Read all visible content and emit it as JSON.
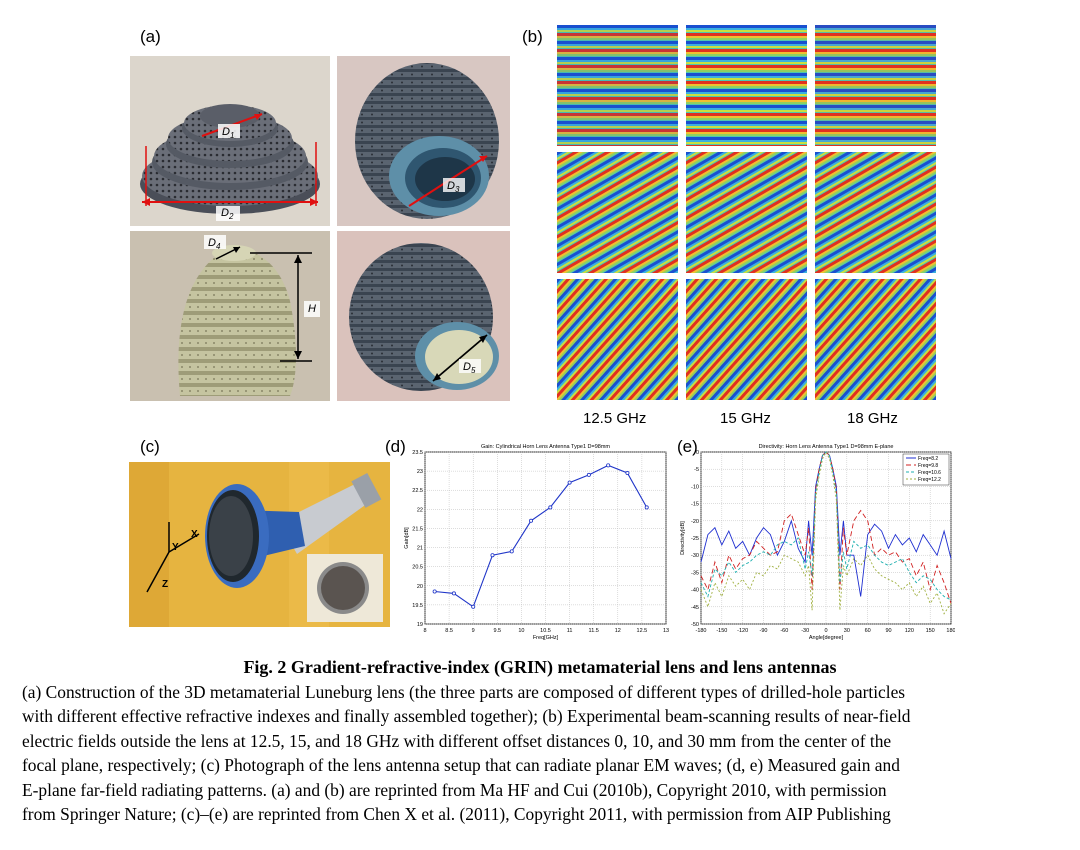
{
  "panels": {
    "a": "(a)",
    "b": "(b)",
    "c": "(c)",
    "d": "(d)",
    "e": "(e)"
  },
  "dims": {
    "D1": "D",
    "D1_sub": "1",
    "D2": "D",
    "D2_sub": "2",
    "D3": "D",
    "D3_sub": "3",
    "D4": "D",
    "D4_sub": "4",
    "D5": "D",
    "D5_sub": "5",
    "H": "H"
  },
  "axes_photo": {
    "x": "X",
    "y": "Y",
    "z": "Z"
  },
  "field_freqs": [
    "12.5 GHz",
    "15 GHz",
    "18 GHz"
  ],
  "chart_data": [
    {
      "type": "line",
      "panel": "(d)",
      "title": "Gain: Cylindrical Horn Lens Antenna Type1 D=98mm",
      "xlabel": "Freq[GHz]",
      "ylabel": "Gain[dB]",
      "xlim": [
        8,
        13
      ],
      "ylim": [
        19,
        23.5
      ],
      "xticks": [
        "8",
        "8.5",
        "9",
        "9.5",
        "10",
        "10.5",
        "11",
        "11.5",
        "12",
        "12.5",
        "13"
      ],
      "yticks": [
        "19",
        "19.5",
        "20",
        "20.5",
        "21",
        "21.5",
        "22",
        "22.5",
        "23",
        "23.5"
      ],
      "grid": true,
      "series": [
        {
          "name": "Gain",
          "color": "#1f35c8",
          "x": [
            8.2,
            8.6,
            9.0,
            9.4,
            9.8,
            10.2,
            10.6,
            11.0,
            11.4,
            11.8,
            12.2,
            12.6
          ],
          "y": [
            19.85,
            19.8,
            19.45,
            20.8,
            20.9,
            21.7,
            22.05,
            22.7,
            22.9,
            23.15,
            22.95,
            22.05
          ]
        }
      ]
    },
    {
      "type": "line",
      "panel": "(e)",
      "title": "Directivity: Horn Lens Antenna Type1 D=98mm E-plane",
      "xlabel": "Angle[degree]",
      "ylabel": "Directivity[dB]",
      "xlim": [
        -180,
        180
      ],
      "ylim": [
        -50,
        0
      ],
      "xticks": [
        "-180",
        "-150",
        "-120",
        "-90",
        "-60",
        "-30",
        "0",
        "30",
        "60",
        "90",
        "120",
        "150",
        "180"
      ],
      "yticks": [
        "0",
        "-5",
        "-10",
        "-15",
        "-20",
        "-25",
        "-30",
        "-35",
        "-40",
        "-45",
        "-50"
      ],
      "grid": true,
      "legend_position": "top-right",
      "series": [
        {
          "name": "Freq=8.2",
          "color": "#1f2fd0",
          "dash": "",
          "x": [
            -180,
            -170,
            -160,
            -150,
            -140,
            -130,
            -120,
            -110,
            -100,
            -90,
            -80,
            -70,
            -60,
            -50,
            -40,
            -30,
            -25,
            -20,
            -15,
            -10,
            -5,
            0,
            5,
            10,
            15,
            20,
            25,
            30,
            40,
            50,
            60,
            70,
            80,
            90,
            100,
            110,
            120,
            130,
            140,
            150,
            160,
            170,
            180
          ],
          "y": [
            -32,
            -24,
            -22,
            -27,
            -23,
            -28,
            -26,
            -30,
            -25,
            -22,
            -24,
            -30,
            -26,
            -20,
            -28,
            -32,
            -20,
            -30,
            -10,
            -5,
            -1,
            0,
            -1,
            -5,
            -10,
            -30,
            -20,
            -30,
            -30,
            -42,
            -24,
            -21,
            -23,
            -28,
            -24,
            -27,
            -25,
            -29,
            -24,
            -27,
            -30,
            -23,
            -31
          ]
        },
        {
          "name": "Freq=9.8",
          "color": "#d02020",
          "dash": "5,3",
          "x": [
            -180,
            -170,
            -160,
            -150,
            -140,
            -130,
            -120,
            -110,
            -100,
            -90,
            -80,
            -70,
            -60,
            -50,
            -40,
            -30,
            -25,
            -20,
            -15,
            -10,
            -5,
            0,
            5,
            10,
            15,
            20,
            25,
            30,
            40,
            50,
            60,
            70,
            80,
            90,
            100,
            110,
            120,
            130,
            140,
            150,
            160,
            170,
            180
          ],
          "y": [
            -36,
            -40,
            -32,
            -38,
            -30,
            -34,
            -31,
            -30,
            -26,
            -28,
            -30,
            -29,
            -20,
            -18,
            -24,
            -30,
            -22,
            -40,
            -11,
            -5,
            -1,
            0,
            -1,
            -5,
            -11,
            -40,
            -22,
            -30,
            -20,
            -17,
            -20,
            -30,
            -28,
            -30,
            -29,
            -32,
            -31,
            -36,
            -32,
            -40,
            -33,
            -38,
            -44
          ]
        },
        {
          "name": "Freq=10.6",
          "color": "#20b0b0",
          "dash": "3,2",
          "x": [
            -180,
            -170,
            -160,
            -150,
            -140,
            -130,
            -120,
            -110,
            -100,
            -90,
            -80,
            -70,
            -60,
            -50,
            -40,
            -30,
            -25,
            -20,
            -15,
            -10,
            -5,
            0,
            5,
            10,
            15,
            20,
            25,
            30,
            40,
            50,
            60,
            70,
            80,
            90,
            100,
            110,
            120,
            130,
            140,
            150,
            160,
            170,
            180
          ],
          "y": [
            -38,
            -42,
            -34,
            -36,
            -32,
            -35,
            -33,
            -32,
            -30,
            -29,
            -30,
            -27,
            -26,
            -27,
            -25,
            -34,
            -29,
            -36,
            -12,
            -6,
            -1,
            0,
            -1,
            -6,
            -12,
            -38,
            -29,
            -34,
            -26,
            -28,
            -27,
            -30,
            -32,
            -33,
            -32,
            -31,
            -35,
            -38,
            -36,
            -37,
            -40,
            -42,
            -43
          ]
        },
        {
          "name": "Freq=12.2",
          "color": "#a0b040",
          "dash": "2,2",
          "x": [
            -180,
            -170,
            -160,
            -150,
            -140,
            -130,
            -120,
            -110,
            -100,
            -90,
            -80,
            -70,
            -60,
            -50,
            -40,
            -30,
            -25,
            -20,
            -15,
            -10,
            -5,
            0,
            5,
            10,
            15,
            20,
            25,
            30,
            40,
            50,
            60,
            70,
            80,
            90,
            100,
            110,
            120,
            130,
            140,
            150,
            160,
            170,
            180
          ],
          "y": [
            -40,
            -45,
            -38,
            -42,
            -36,
            -39,
            -37,
            -40,
            -35,
            -36,
            -33,
            -34,
            -30,
            -31,
            -32,
            -36,
            -33,
            -46,
            -14,
            -7,
            -2,
            0,
            -2,
            -7,
            -14,
            -46,
            -33,
            -36,
            -31,
            -33,
            -30,
            -34,
            -36,
            -37,
            -38,
            -40,
            -38,
            -42,
            -39,
            -44,
            -41,
            -47,
            -44
          ]
        }
      ]
    }
  ],
  "caption": {
    "title": "Fig. 2  Gradient-refractive-index (GRIN) metamaterial lens and lens antennas",
    "lines": [
      "(a) Construction of the 3D metamaterial Luneburg lens (the three parts are composed of different types of drilled-hole particles",
      "with different effective refractive indexes and finally assembled together); (b) Experimental beam-scanning results of near-field",
      "electric fields outside the lens at 12.5, 15, and 18 GHz with different offset distances 0, 10, and 30 mm from the center of the",
      "focal plane, respectively; (c) Photograph of the lens antenna setup that can radiate planar EM waves; (d, e) Measured gain and",
      "E-plane far-field radiating patterns. (a) and (b) are reprinted from Ma HF and Cui (2010b), Copyright 2010, with permission",
      "from Springer Nature; (c)–(e) are reprinted from Chen X et al. (2011), Copyright 2011, with permission from AIP Publishing"
    ]
  }
}
